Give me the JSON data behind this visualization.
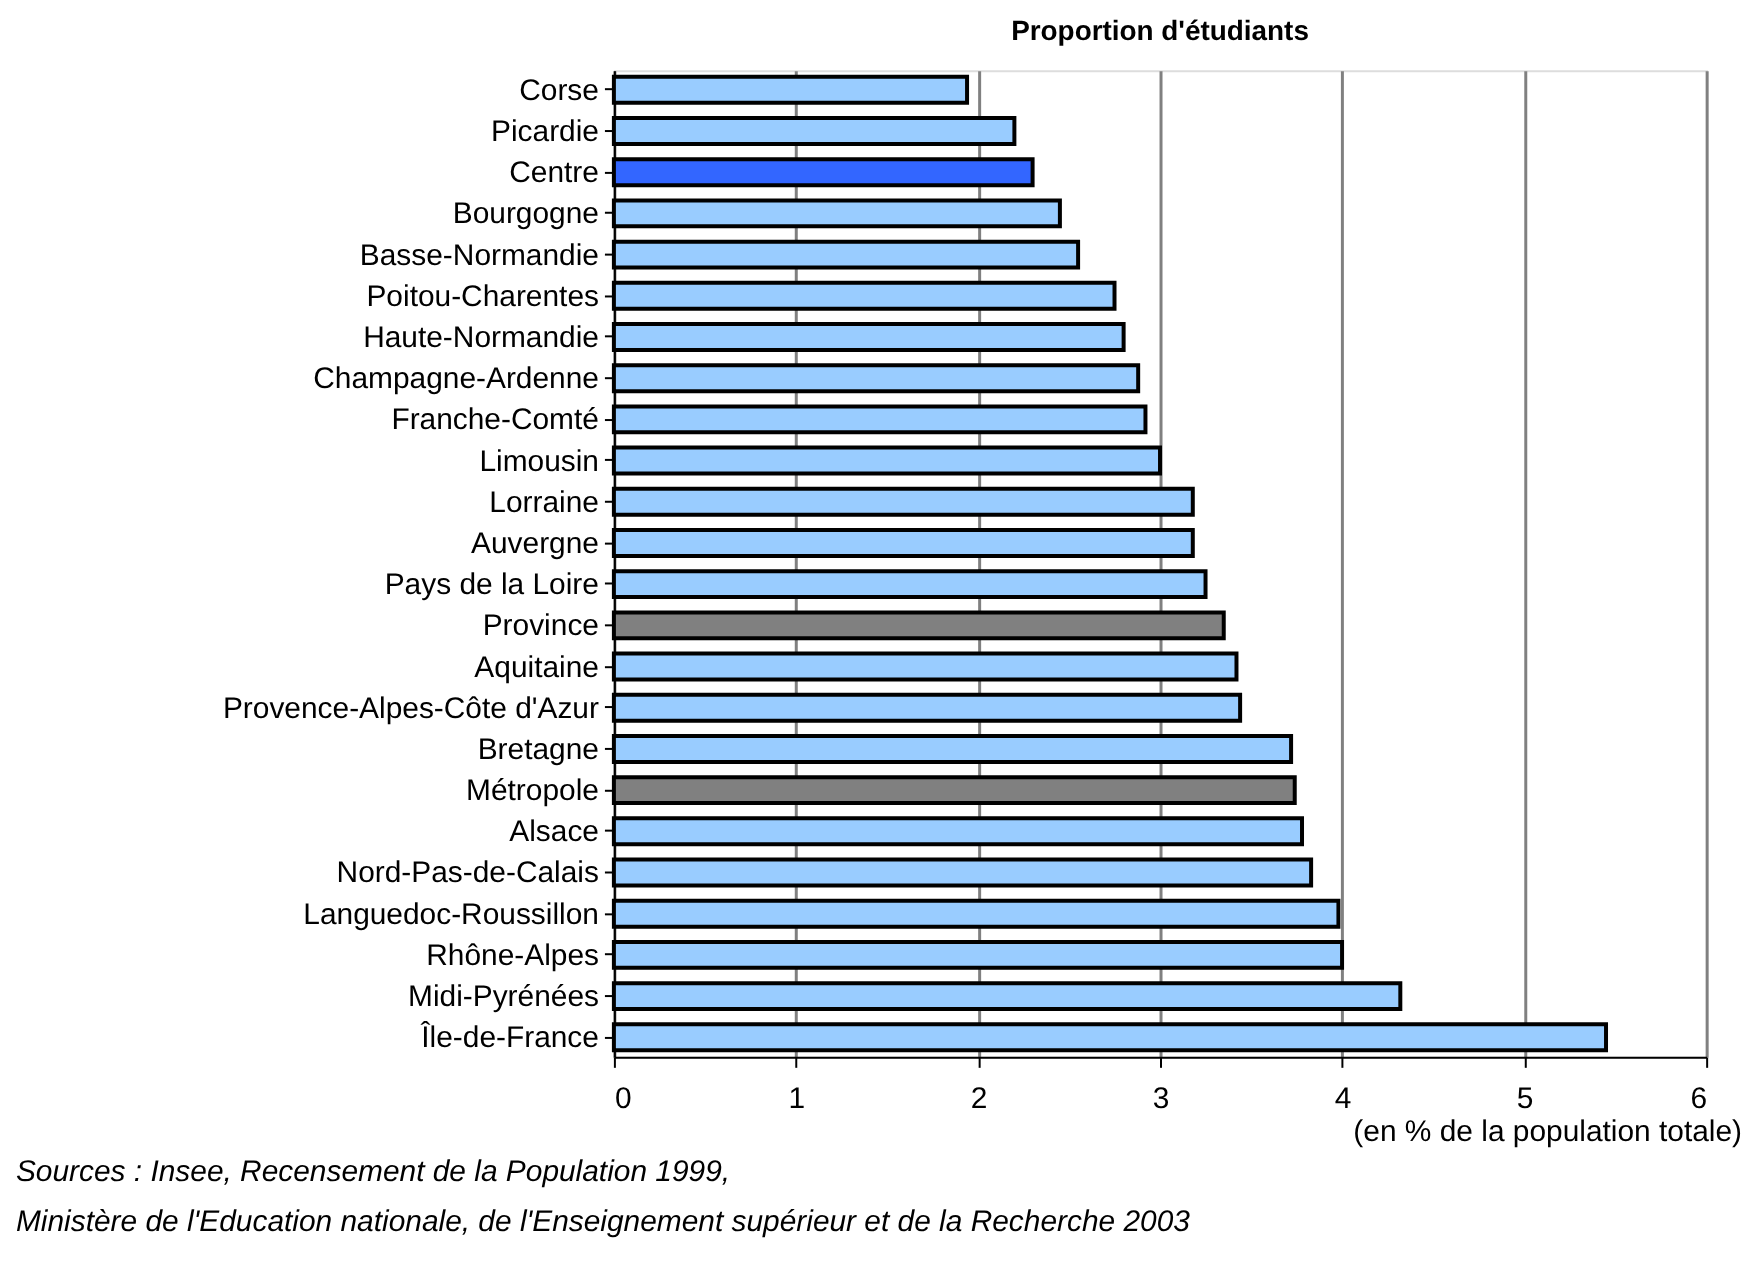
{
  "chart_data": {
    "type": "bar",
    "orientation": "horizontal",
    "title": "Proportion d'étudiants",
    "xlabel": "(en % de la population totale)",
    "categories": [
      "Corse",
      "Picardie",
      "Centre",
      "Bourgogne",
      "Basse-Normandie",
      "Poitou-Charentes",
      "Haute-Normandie",
      "Champagne-Ardenne",
      "Franche-Comté",
      "Limousin",
      "Lorraine",
      "Auvergne",
      "Pays de la Loire",
      "Province",
      "Aquitaine",
      "Provence-Alpes-Côte d'Azur",
      "Bretagne",
      "Métropole",
      "Alsace",
      "Nord-Pas-de-Calais",
      "Languedoc-Roussillon",
      "Rhône-Alpes",
      "Midi-Pyrénées",
      "Île-de-France"
    ],
    "values": [
      1.94,
      2.2,
      2.3,
      2.45,
      2.55,
      2.75,
      2.8,
      2.88,
      2.92,
      3.0,
      3.18,
      3.18,
      3.25,
      3.35,
      3.42,
      3.44,
      3.72,
      3.74,
      3.78,
      3.83,
      3.98,
      4.0,
      4.32,
      5.45
    ],
    "colors": [
      "#99ccff",
      "#99ccff",
      "#3366ff",
      "#99ccff",
      "#99ccff",
      "#99ccff",
      "#99ccff",
      "#99ccff",
      "#99ccff",
      "#99ccff",
      "#99ccff",
      "#99ccff",
      "#99ccff",
      "#808080",
      "#99ccff",
      "#99ccff",
      "#99ccff",
      "#808080",
      "#99ccff",
      "#99ccff",
      "#99ccff",
      "#99ccff",
      "#99ccff",
      "#99ccff"
    ],
    "xlim": [
      0,
      6
    ],
    "xticks": [
      0,
      1,
      2,
      3,
      4,
      5,
      6
    ],
    "grid": "x",
    "annotations": [
      "Sources : Insee, Recensement de la Population 1999,",
      "Ministère de l'Education nationale, de l'Enseignement supérieur et de la Recherche 2003"
    ]
  }
}
